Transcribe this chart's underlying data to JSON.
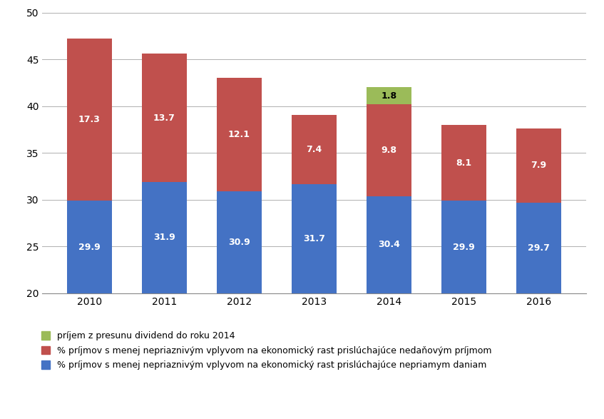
{
  "years": [
    "2010",
    "2011",
    "2012",
    "2013",
    "2014",
    "2015",
    "2016"
  ],
  "blue_values": [
    29.9,
    31.9,
    30.9,
    31.7,
    30.4,
    29.9,
    29.7
  ],
  "red_values": [
    17.3,
    13.7,
    12.1,
    7.4,
    9.8,
    8.1,
    7.9
  ],
  "green_values": [
    0.0,
    0.0,
    0.0,
    0.0,
    1.8,
    0.0,
    0.0
  ],
  "blue_color": "#4472C4",
  "red_color": "#C0504D",
  "green_color": "#9BBB59",
  "ylim_min": 20,
  "ylim_max": 50,
  "yticks": [
    20,
    25,
    30,
    35,
    40,
    45,
    50
  ],
  "legend_green": "príjem z presunu dividend do roku 2014",
  "legend_red": "% príjmov s menej nepriaznivým vplyvom na ekonomický rast prislúchajúce nedaňovým príjmom",
  "legend_blue": "% príjmov s menej nepriaznivým vplyvom na ekonomický rast prislúchajúce nepriamym daniam",
  "bar_width": 0.6,
  "figsize": [
    8.47,
    5.87
  ],
  "dpi": 100
}
